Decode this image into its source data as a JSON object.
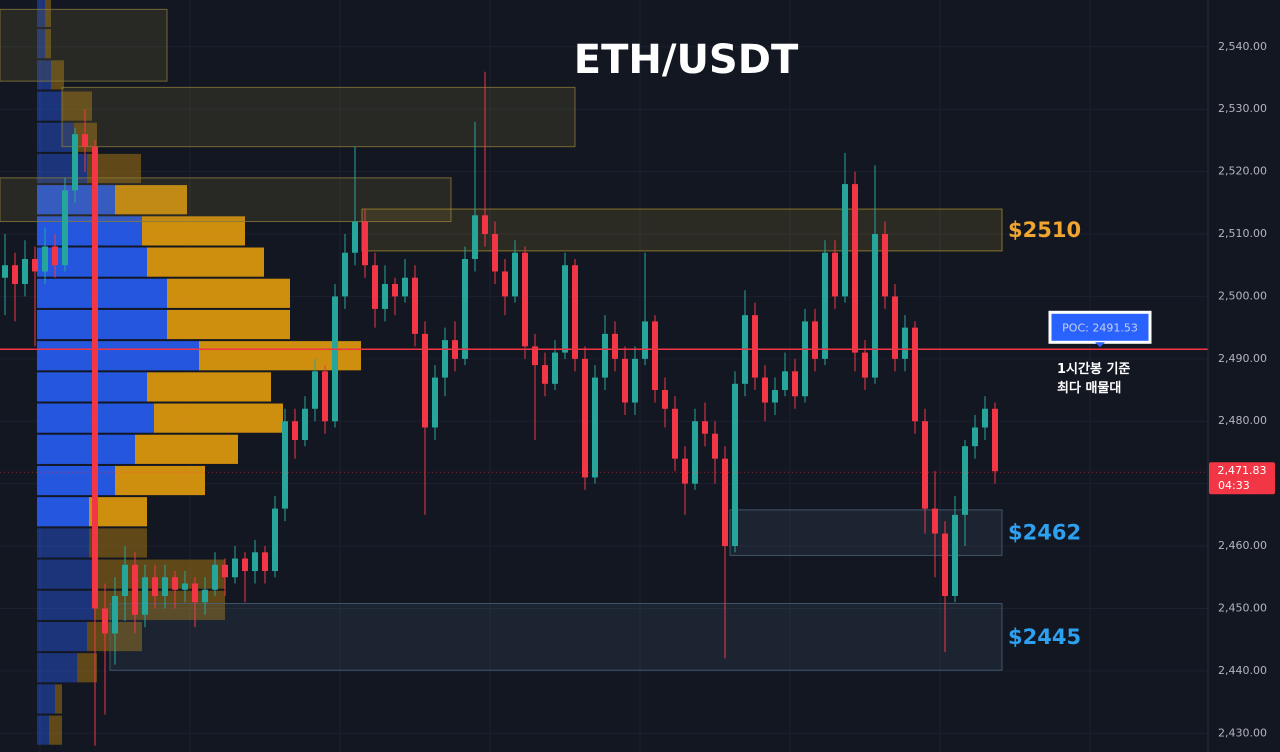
{
  "chart_data": {
    "type": "candlestick",
    "title": "ETH/USDT",
    "up_color": "#26a69a",
    "down_color": "#f23645",
    "candles": {
      "open": [
        2503,
        2505,
        2502,
        2506,
        2504,
        2508,
        2505,
        2517,
        2526,
        2524,
        2450,
        2446,
        2452,
        2457,
        2449,
        2455,
        2452,
        2455,
        2453,
        2454,
        2451,
        2453,
        2457,
        2455,
        2458,
        2456,
        2459,
        2456,
        2466,
        2480,
        2477,
        2482,
        2488,
        2480,
        2500,
        2507,
        2512,
        2505,
        2498,
        2502,
        2500,
        2503,
        2494,
        2479,
        2487,
        2493,
        2490,
        2506,
        2513,
        2510,
        2504,
        2500,
        2507,
        2492,
        2489,
        2486,
        2491,
        2505,
        2490,
        2471,
        2487,
        2494,
        2490,
        2483,
        2490,
        2496,
        2485,
        2482,
        2474,
        2470,
        2480,
        2478,
        2474,
        2460,
        2486,
        2497,
        2487,
        2483,
        2485,
        2488,
        2484,
        2496,
        2490,
        2507,
        2500,
        2518,
        2491,
        2487,
        2510,
        2500,
        2490,
        2495,
        2480,
        2466,
        2462,
        2452,
        2465,
        2476,
        2479,
        2482
      ],
      "high": [
        2510,
        2507,
        2509,
        2508,
        2511,
        2510,
        2519,
        2527,
        2530,
        2525,
        2454,
        2455,
        2460,
        2459,
        2457,
        2457,
        2457,
        2456,
        2456,
        2455,
        2455,
        2459,
        2458,
        2460,
        2459,
        2461,
        2460,
        2468,
        2482,
        2482,
        2484,
        2490,
        2489,
        2502,
        2510,
        2524,
        2514,
        2507,
        2505,
        2503,
        2506,
        2505,
        2496,
        2489,
        2495,
        2496,
        2508,
        2528,
        2536,
        2512,
        2506,
        2509,
        2508,
        2494,
        2491,
        2493,
        2507,
        2506,
        2492,
        2489,
        2497,
        2496,
        2492,
        2492,
        2507,
        2497,
        2487,
        2484,
        2476,
        2482,
        2483,
        2480,
        2476,
        2488,
        2501,
        2499,
        2489,
        2487,
        2491,
        2490,
        2498,
        2498,
        2509,
        2509,
        2523,
        2520,
        2493,
        2521,
        2512,
        2502,
        2497,
        2496,
        2482,
        2472,
        2464,
        2468,
        2477,
        2481,
        2484,
        2483
      ],
      "low": [
        2497,
        2496,
        2500,
        2492,
        2502,
        2503,
        2504,
        2515,
        2520,
        2428,
        2433,
        2441,
        2448,
        2446,
        2447,
        2450,
        2450,
        2450,
        2451,
        2447,
        2449,
        2452,
        2452,
        2454,
        2451,
        2454,
        2454,
        2455,
        2464,
        2474,
        2476,
        2480,
        2478,
        2479,
        2498,
        2505,
        2503,
        2495,
        2496,
        2497,
        2499,
        2492,
        2465,
        2477,
        2484,
        2488,
        2489,
        2504,
        2508,
        2502,
        2497,
        2499,
        2490,
        2477,
        2484,
        2485,
        2490,
        2488,
        2469,
        2470,
        2485,
        2488,
        2481,
        2481,
        2489,
        2483,
        2479,
        2472,
        2465,
        2469,
        2476,
        2470,
        2442,
        2459,
        2484,
        2485,
        2480,
        2481,
        2484,
        2482,
        2483,
        2488,
        2489,
        2498,
        2499,
        2488,
        2485,
        2486,
        2498,
        2488,
        2488,
        2478,
        2462,
        2455,
        2443,
        2451,
        2460,
        2474,
        2477,
        2470
      ],
      "close": [
        2505,
        2502,
        2506,
        2504,
        2508,
        2505,
        2517,
        2526,
        2524,
        2450,
        2446,
        2452,
        2457,
        2449,
        2455,
        2452,
        2455,
        2453,
        2454,
        2451,
        2453,
        2457,
        2455,
        2458,
        2456,
        2459,
        2456,
        2466,
        2480,
        2477,
        2482,
        2488,
        2480,
        2500,
        2507,
        2512,
        2505,
        2498,
        2502,
        2500,
        2503,
        2494,
        2479,
        2487,
        2493,
        2490,
        2506,
        2513,
        2510,
        2504,
        2500,
        2507,
        2492,
        2489,
        2486,
        2491,
        2505,
        2490,
        2471,
        2487,
        2494,
        2490,
        2483,
        2490,
        2496,
        2485,
        2482,
        2474,
        2470,
        2480,
        2478,
        2474,
        2460,
        2486,
        2497,
        2487,
        2483,
        2485,
        2488,
        2484,
        2496,
        2490,
        2507,
        2500,
        2518,
        2491,
        2487,
        2510,
        2500,
        2490,
        2495,
        2480,
        2466,
        2462,
        2452,
        2465,
        2476,
        2479,
        2482,
        2472
      ]
    },
    "ylim": [
      2427,
      2547.5
    ],
    "yticks": [
      {
        "value": 2430,
        "label": "2,430.00"
      },
      {
        "value": 2440,
        "label": "2,440.00"
      },
      {
        "value": 2450,
        "label": "2,450.00"
      },
      {
        "value": 2460,
        "label": "2,460.00"
      },
      {
        "value": 2470,
        "label": "2,470.00"
      },
      {
        "value": 2480,
        "label": "2,480.00"
      },
      {
        "value": 2490,
        "label": "2,490.00"
      },
      {
        "value": 2500,
        "label": "2,500.00"
      },
      {
        "value": 2510,
        "label": "2,510.00"
      },
      {
        "value": 2520,
        "label": "2,520.00"
      },
      {
        "value": 2530,
        "label": "2,530.00"
      },
      {
        "value": 2540,
        "label": "2,540.00"
      }
    ],
    "grid": true,
    "volume_profile": {
      "bins": [
        2428,
        2433,
        2438,
        2443,
        2448,
        2453,
        2458,
        2463,
        2468,
        2473,
        2478,
        2483,
        2488,
        2493,
        2498,
        2503,
        2508,
        2513,
        2518,
        2523,
        2528,
        2533,
        2538,
        2543,
        2548
      ],
      "buy": [
        12,
        18,
        40,
        50,
        57,
        60,
        52,
        52,
        78,
        98,
        117,
        110,
        162,
        130,
        130,
        110,
        105,
        78,
        50,
        37,
        25,
        14,
        8,
        8
      ],
      "sell": [
        13,
        7,
        20,
        55,
        131,
        128,
        58,
        58,
        90,
        103,
        129,
        124,
        162,
        123,
        123,
        117,
        103,
        72,
        54,
        23,
        30,
        13,
        6,
        6
      ],
      "buy_color": "#2962ff",
      "sell_color": "#f0a30a"
    },
    "zones": [
      {
        "low": 2534.5,
        "high": 2546,
        "color": "#8a7a3a"
      },
      {
        "low": 2524,
        "high": 2533.5,
        "color": "#8a7a3a"
      },
      {
        "low": 2512,
        "high": 2519,
        "color": "#8a7a3a"
      },
      {
        "low": 2507.3,
        "high": 2514,
        "color": "#a08a2a",
        "label": "$2510",
        "label_color": "#f0a530"
      },
      {
        "low": 2458.5,
        "high": 2465.8,
        "color": "#4a6478",
        "label": "$2462",
        "label_color": "#2ea0f0"
      },
      {
        "low": 2440.1,
        "high": 2450.8,
        "color": "#4a6478",
        "label": "$2445",
        "label_color": "#2ea0f0"
      }
    ],
    "poc": {
      "value": 2491.53,
      "label": "POC: 2491.53",
      "color": "#f23645",
      "box_color": "#2962ff"
    },
    "annotation": [
      "1시간봉 기준",
      "최다 매물대"
    ],
    "last_price": {
      "value": 2471.83,
      "label": "2,471.83",
      "countdown": "04:33",
      "color": "#f23645"
    }
  }
}
